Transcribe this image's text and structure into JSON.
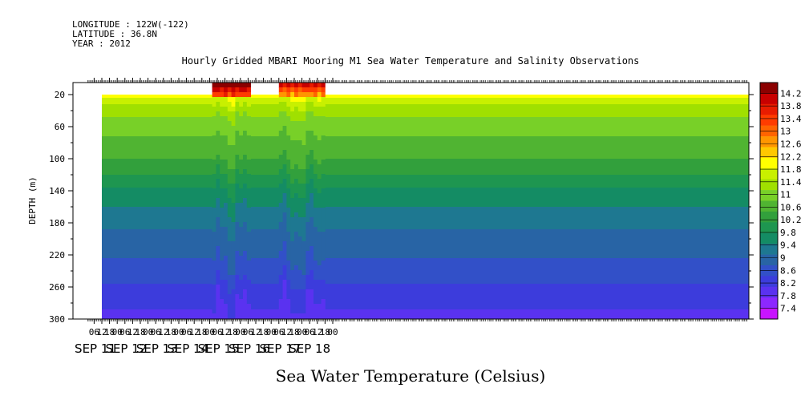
{
  "header": {
    "longitude": "LONGITUDE : 122W(-122)",
    "latitude": "LATITUDE : 36.8N",
    "year": "YEAR : 2012",
    "title": "Hourly Gridded MBARI Mooring M1 Sea Water Temperature and Salinity Observations"
  },
  "chart_data": {
    "type": "heatmap",
    "title": "Hourly Gridded MBARI Mooring M1 Sea Water Temperature and Salinity Observations",
    "xlabel": "Sea Water Temperature (Celsius)",
    "ylabel": "DEPTH (m)",
    "y_ticks": [
      "20",
      "60",
      "100",
      "140",
      "180",
      "220",
      "260",
      "300"
    ],
    "y_range": [
      5,
      300
    ],
    "x_hour_ticks": [
      "06",
      "12",
      "18",
      "00",
      "06",
      "12",
      "18",
      "00",
      "06",
      "12",
      "18",
      "00",
      "06",
      "12",
      "18",
      "00",
      "06",
      "12",
      "18",
      "00",
      "06",
      "12",
      "18",
      "00",
      "06",
      "12",
      "18",
      "00",
      "06",
      "12",
      "18",
      "00"
    ],
    "x_day_labels": [
      "SEP 11",
      "SEP 12",
      "SEP 13",
      "SEP 14",
      "SEP 15",
      "SEP 16",
      "SEP 17",
      "SEP 18"
    ],
    "colorbar_labels": [
      "14.2",
      "13.8",
      "13.4",
      "13",
      "12.6",
      "12.2",
      "11.8",
      "11.4",
      "11",
      "10.6",
      "10.2",
      "9.8",
      "9.4",
      "9",
      "8.6",
      "8.2",
      "7.8",
      "7.4"
    ],
    "colorbar_colors": [
      "#8b0000",
      "#c80000",
      "#e81c00",
      "#ff3c00",
      "#ff6400",
      "#ff9600",
      "#ffc800",
      "#ffff00",
      "#c8f000",
      "#a0e000",
      "#78d028",
      "#50b432",
      "#32a03c",
      "#1e9650",
      "#148c64",
      "#1e7891",
      "#2864a5",
      "#3250c8",
      "#3c3cdc",
      "#5a32f0",
      "#8c28ff",
      "#c814ff"
    ],
    "depth_profile": [
      {
        "depth": 20,
        "temperature": 11.8
      },
      {
        "depth": 40,
        "temperature": 11.2
      },
      {
        "depth": 60,
        "temperature": 10.9
      },
      {
        "depth": 100,
        "temperature": 10.5
      },
      {
        "depth": 140,
        "temperature": 9.8
      },
      {
        "depth": 180,
        "temperature": 9.3
      },
      {
        "depth": 220,
        "temperature": 9.0
      },
      {
        "depth": 260,
        "temperature": 8.6
      },
      {
        "depth": 300,
        "temperature": 8.2
      }
    ],
    "events": [
      {
        "start": "SEP 15 02",
        "end": "SEP 16 06",
        "surface_temperature": 14.2
      },
      {
        "start": "SEP 17 06",
        "end": "SEP 18 18",
        "surface_temperature": 13.6
      }
    ],
    "grid": false,
    "legend": "right"
  }
}
